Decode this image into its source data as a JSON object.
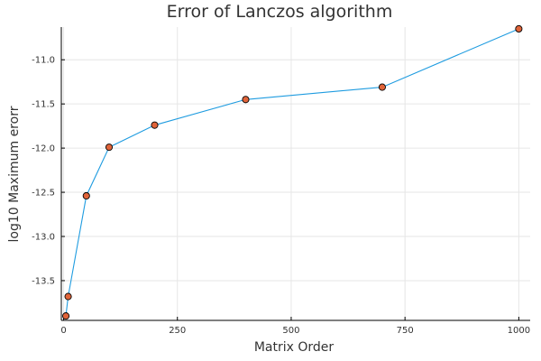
{
  "chart_data": {
    "type": "line",
    "title": "Error of Lanczos algorithm",
    "xlabel": "Matrix Order",
    "ylabel": "log10 Maximum erorr",
    "xlim": [
      -5,
      1025
    ],
    "ylim": [
      -13.95,
      -10.63
    ],
    "x_ticks": [
      0,
      250,
      500,
      750,
      1000
    ],
    "x_tick_labels": [
      "0",
      "250",
      "500",
      "750",
      "1000"
    ],
    "y_ticks": [
      -11.0,
      -11.5,
      -12.0,
      -12.5,
      -13.0,
      -13.5
    ],
    "y_tick_labels": [
      "-11.0",
      "-11.5",
      "-12.0",
      "-12.5",
      "-13.0",
      "-13.5"
    ],
    "grid": true,
    "legend": "none",
    "series": [
      {
        "line_color": "#1f9ce0",
        "marker_color": "#e0643a",
        "x": [
          5,
          10,
          50,
          100,
          200,
          400,
          700,
          1000
        ],
        "y": [
          -13.9,
          -13.68,
          -12.54,
          -11.99,
          -11.74,
          -11.45,
          -11.31,
          -10.65
        ]
      }
    ]
  }
}
